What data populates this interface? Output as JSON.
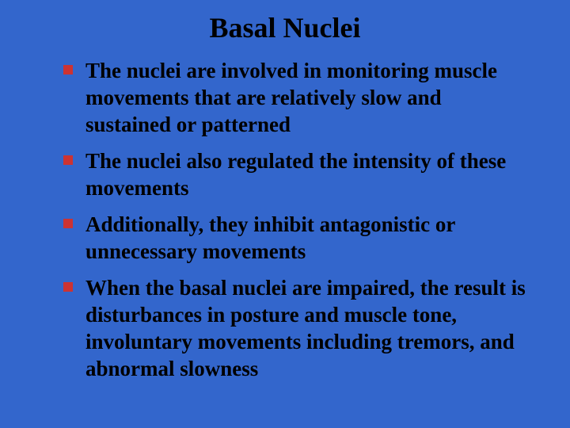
{
  "slide": {
    "title": "Basal Nuclei",
    "background_color": "#3366cc",
    "title_color": "#000000",
    "title_fontsize": 36,
    "body_fontsize": 27,
    "body_color": "#000000",
    "bullet_marker_color": "#cc3333",
    "font_family": "Times New Roman",
    "bullets": [
      "The nuclei are involved in monitoring muscle movements that are relatively slow and sustained or patterned",
      "The nuclei also regulated the intensity of these movements",
      "Additionally, they inhibit antagonistic or unnecessary movements",
      "When the basal nuclei are impaired, the result is disturbances in posture and muscle tone, involuntary movements including tremors, and abnormal slowness"
    ]
  }
}
